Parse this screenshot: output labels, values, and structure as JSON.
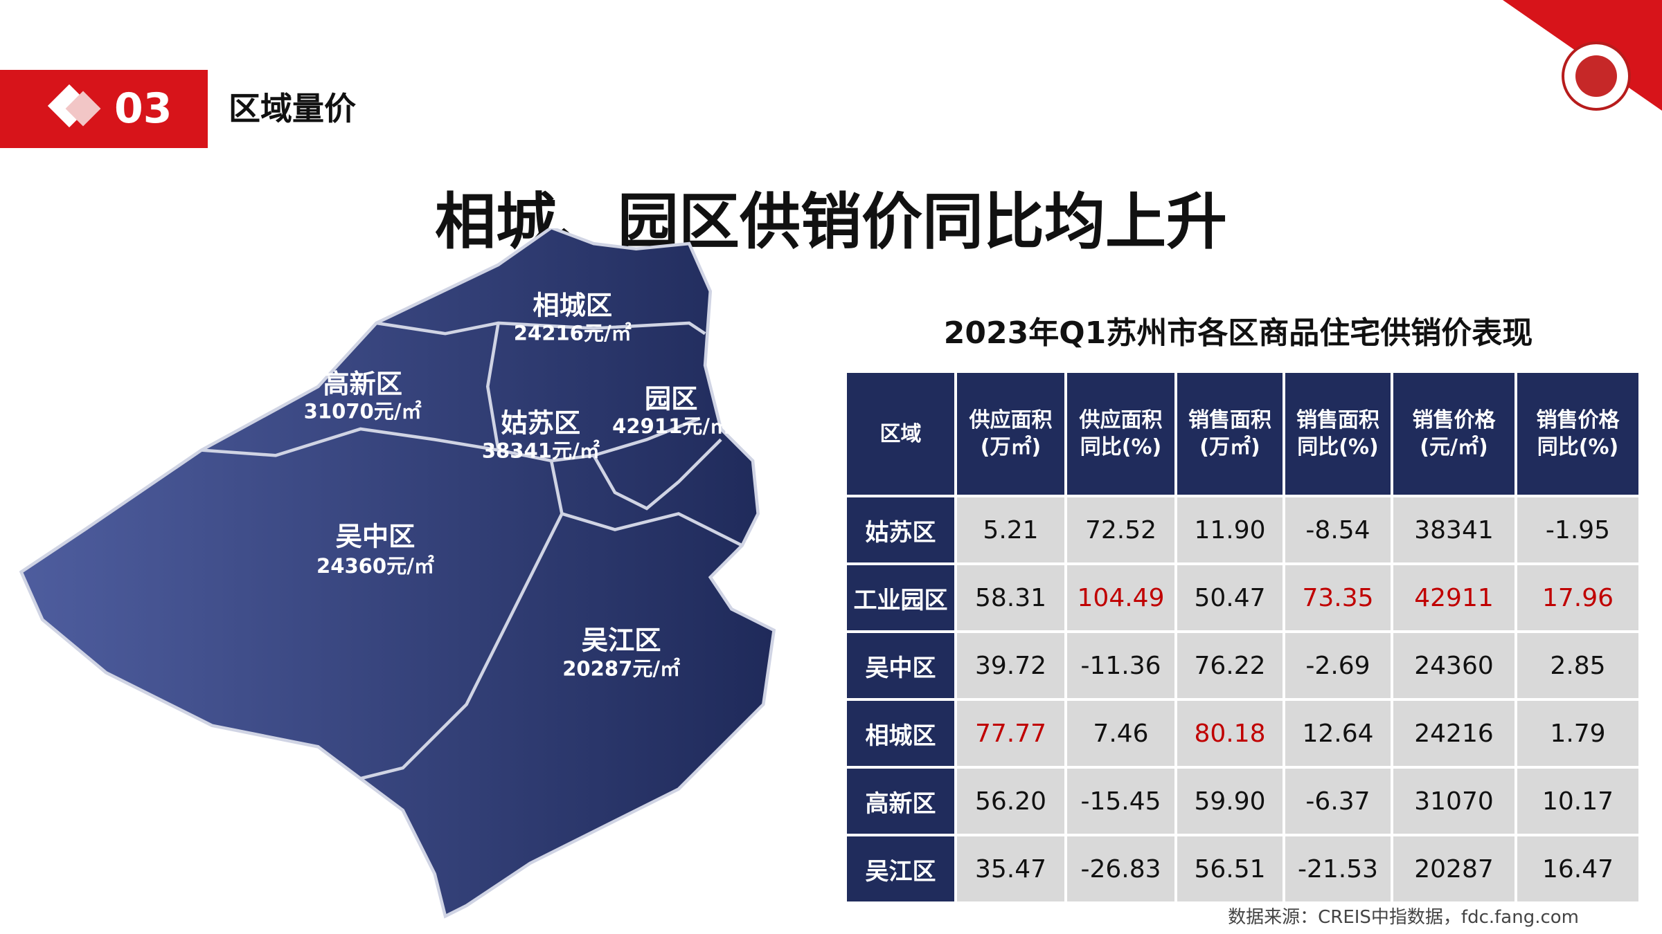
{
  "header": {
    "section_number": "03",
    "section_title": "区域量价"
  },
  "title": "相城、园区供销价同比均上升",
  "map": {
    "regions": [
      {
        "name": "相城区",
        "price": "24216元/㎡"
      },
      {
        "name": "高新区",
        "price": "31070元/㎡"
      },
      {
        "name": "姑苏区",
        "price": "38341元/㎡"
      },
      {
        "name": "园区",
        "price": "42911元/㎡"
      },
      {
        "name": "吴中区",
        "price": "24360元/㎡"
      },
      {
        "name": "吴江区",
        "price": "20287元/㎡"
      }
    ]
  },
  "table": {
    "title": "2023年Q1苏州市各区商品住宅供销价表现",
    "headers": [
      [
        "区域"
      ],
      [
        "供应面积",
        "(万㎡)"
      ],
      [
        "供应面积",
        "同比(%)"
      ],
      [
        "销售面积",
        "(万㎡)"
      ],
      [
        "销售面积",
        "同比(%)"
      ],
      [
        "销售价格",
        "(元/㎡)"
      ],
      [
        "销售价格",
        "同比(%)"
      ]
    ],
    "rows": [
      [
        "姑苏区",
        "5.21",
        "72.52",
        "11.90",
        "-8.54",
        "38341",
        "-1.95"
      ],
      [
        "工业园区",
        "58.31",
        "104.49",
        "50.47",
        "73.35",
        "42911",
        "17.96"
      ],
      [
        "吴中区",
        "39.72",
        "-11.36",
        "76.22",
        "-2.69",
        "24360",
        "2.85"
      ],
      [
        "相城区",
        "77.77",
        "7.46",
        "80.18",
        "12.64",
        "24216",
        "1.79"
      ],
      [
        "高新区",
        "56.20",
        "-15.45",
        "59.90",
        "-6.37",
        "31070",
        "10.17"
      ],
      [
        "吴江区",
        "35.47",
        "-26.83",
        "56.51",
        "-21.53",
        "20287",
        "16.47"
      ]
    ],
    "highlight": {
      "color": "#c00000",
      "cells": [
        [
          1,
          2
        ],
        [
          1,
          4
        ],
        [
          1,
          5
        ],
        [
          1,
          6
        ],
        [
          3,
          1
        ],
        [
          3,
          3
        ]
      ]
    }
  },
  "source": "数据来源：CREIS中指数据，fdc.fang.com"
}
